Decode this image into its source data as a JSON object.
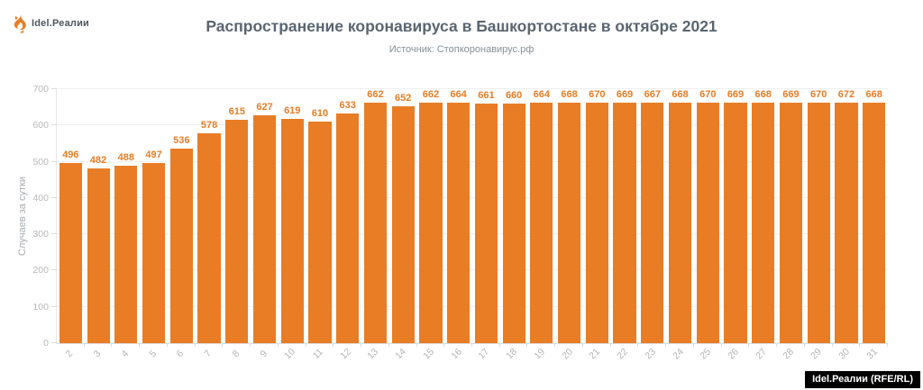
{
  "logo": {
    "text": "Idel.Реалии",
    "icon": "flame-icon"
  },
  "header": {
    "title": "Распространение коронавируса в Башкортостане в октябре 2021",
    "subtitle": "Источник: Стопкоронавирус.рф"
  },
  "colors": {
    "bar": "#E87D26",
    "title": "#5A6570",
    "subtitle": "#878F96",
    "axis_text": "#B8B8B8",
    "gridline": "#EFEFEF",
    "badge_bg": "#000000",
    "badge_text": "#FFFFFF"
  },
  "chart_data": {
    "type": "bar",
    "title": "Распространение коронавируса в Башкортостане в октябре 2021",
    "subtitle": "Источник: Стопкоронавирус.рф",
    "categories": [
      "2",
      "3",
      "4",
      "5",
      "6",
      "7",
      "8",
      "9",
      "10",
      "11",
      "12",
      "13",
      "14",
      "15",
      "16",
      "17",
      "18",
      "19",
      "20",
      "21",
      "22",
      "23",
      "24",
      "25",
      "26",
      "27",
      "28",
      "29",
      "30",
      "31"
    ],
    "values": [
      496,
      482,
      488,
      497,
      536,
      578,
      615,
      627,
      619,
      610,
      633,
      662,
      652,
      662,
      664,
      661,
      660,
      664,
      668,
      670,
      669,
      667,
      668,
      670,
      669,
      668,
      669,
      670,
      672,
      668
    ],
    "xlabel": "",
    "ylabel": "Случаев за сутки",
    "ylim": [
      0,
      700
    ],
    "yticks": [
      0,
      100,
      200,
      300,
      400,
      500,
      600,
      700
    ],
    "grid": true,
    "legend": "none",
    "bar_color": "#E87D26",
    "value_labels": true,
    "x_label_rotation": -45
  },
  "watermark": {
    "text": "Idel.Реалии (RFE/RL)"
  }
}
